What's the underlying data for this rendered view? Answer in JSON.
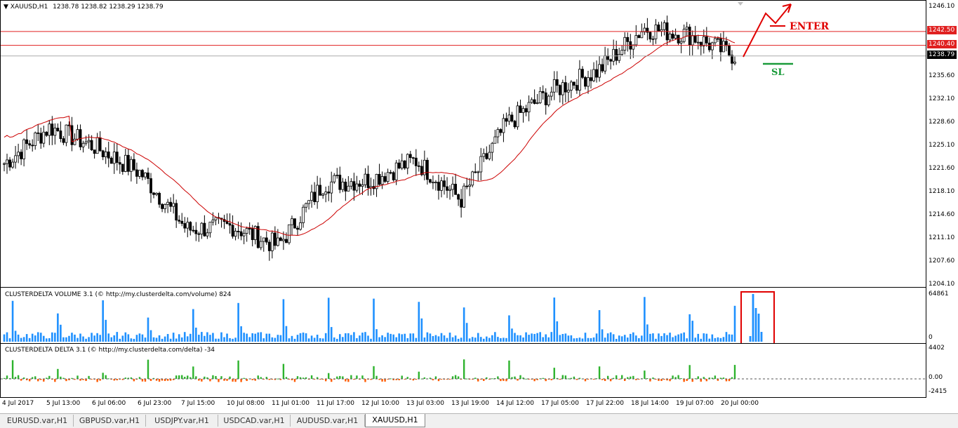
{
  "chart": {
    "title": "XAUUSD,H1",
    "ohlc": "1238.78 1238.82 1238.29 1238.79"
  },
  "price_axis": [
    "1246.10",
    "1242.50",
    "1240.40",
    "1238.79",
    "1235.60",
    "1232.10",
    "1228.60",
    "1225.10",
    "1221.60",
    "1218.10",
    "1214.60",
    "1211.10",
    "1207.60",
    "1204.10"
  ],
  "lines": {
    "line1": "1242.50",
    "line2": "1240.40",
    "current": "1238.79"
  },
  "annotations": {
    "enter": "ENTER",
    "sl": "SL"
  },
  "volume_panel": {
    "label": "CLUSTERDELTA VOLUME 3.1 (© http://my.clusterdelta.com/volume) 824",
    "max": "64861",
    "zero": "0"
  },
  "delta_panel": {
    "label": "CLUSTERDELTA DELTA 3.1 (© http://my.clusterdelta.com/delta) -34",
    "max": "4402",
    "zero": "0.00",
    "min": "-2415"
  },
  "time_axis": [
    "4 Jul 2017",
    "5 Jul 13:00",
    "6 Jul 06:00",
    "6 Jul 23:00",
    "7 Jul 15:00",
    "10 Jul 08:00",
    "11 Jul 01:00",
    "11 Jul 17:00",
    "12 Jul 10:00",
    "13 Jul 03:00",
    "13 Jul 19:00",
    "14 Jul 12:00",
    "17 Jul 05:00",
    "17 Jul 22:00",
    "18 Jul 14:00",
    "19 Jul 07:00",
    "20 Jul 00:00"
  ],
  "tabs": [
    {
      "label": "EURUSD.var,H1",
      "active": false
    },
    {
      "label": "GBPUSD.var,H1",
      "active": false
    },
    {
      "label": "USDJPY.var,H1",
      "active": false
    },
    {
      "label": "USDCAD.var,H1",
      "active": false
    },
    {
      "label": "AUDUSD.var,H1",
      "active": false
    },
    {
      "label": "XAUUSD,H1",
      "active": true
    }
  ],
  "colors": {
    "horizontal_line": "#e02020",
    "moving_average": "#cc0000",
    "volume": "#1e90ff",
    "delta_positive": "#2db32d",
    "delta_negative": "#ff5a00",
    "highlight_box": "#e00000",
    "sl_line": "#1a9b3a"
  },
  "chart_data": {
    "type": "candlestick",
    "symbol": "XAUUSD",
    "timeframe": "H1",
    "ylim": [
      1204.1,
      1246.1
    ],
    "series_close_keypoints": [
      {
        "x": "4 Jul 2017",
        "y": 1222.5
      },
      {
        "x": "5 Jul 13:00",
        "y": 1228.0
      },
      {
        "x": "6 Jul 06:00",
        "y": 1225.0
      },
      {
        "x": "6 Jul 23:00",
        "y": 1221.0
      },
      {
        "x": "7 Jul 15:00",
        "y": 1212.5
      },
      {
        "x": "10 Jul 08:00",
        "y": 1213.0
      },
      {
        "x": "11 Jul 01:00",
        "y": 1210.0
      },
      {
        "x": "11 Jul 17:00",
        "y": 1219.5
      },
      {
        "x": "12 Jul 10:00",
        "y": 1220.0
      },
      {
        "x": "13 Jul 03:00",
        "y": 1223.0
      },
      {
        "x": "13 Jul 19:00",
        "y": 1217.0
      },
      {
        "x": "14 Jul 12:00",
        "y": 1228.5
      },
      {
        "x": "17 Jul 05:00",
        "y": 1233.5
      },
      {
        "x": "17 Jul 22:00",
        "y": 1236.5
      },
      {
        "x": "18 Jul 14:00",
        "y": 1243.0
      },
      {
        "x": "19 Jul 07:00",
        "y": 1242.0
      },
      {
        "x": "20 Jul 00:00",
        "y": 1238.8
      }
    ],
    "horizontal_levels": [
      1242.5,
      1240.4
    ],
    "last_price": 1238.79
  }
}
